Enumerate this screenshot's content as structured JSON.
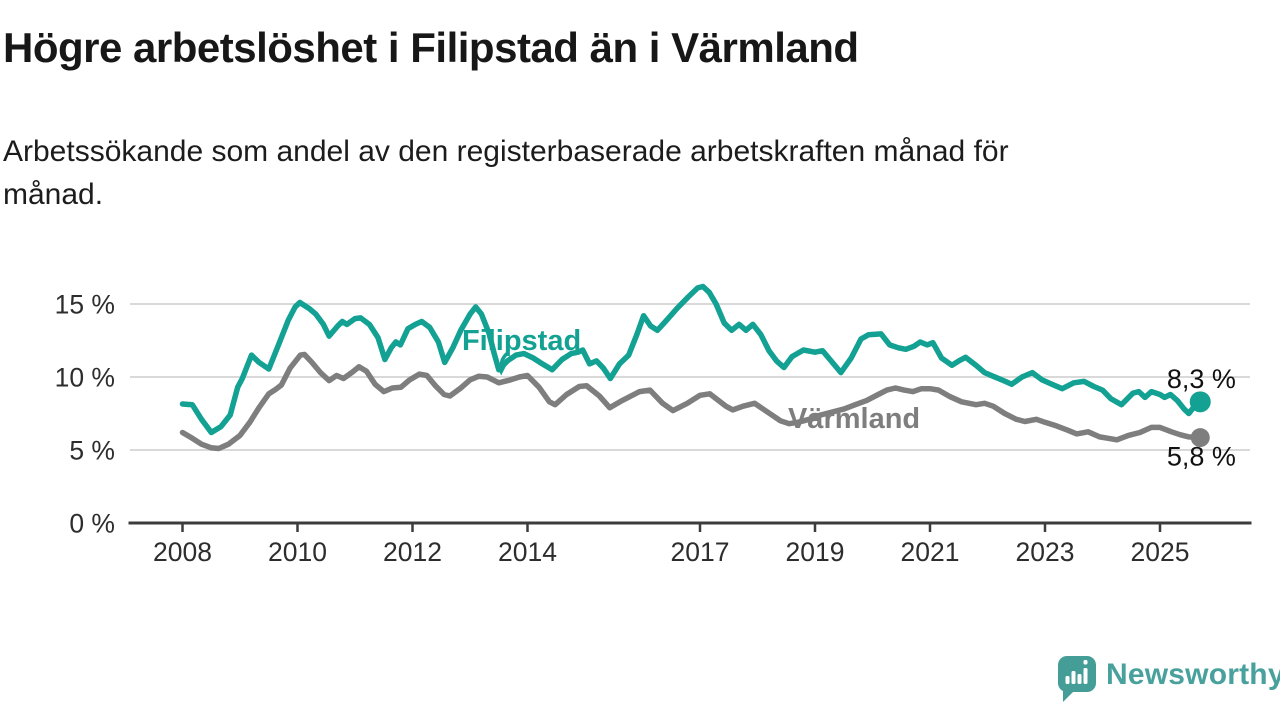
{
  "header": {
    "title": "Högre arbetslöshet i Filipstad än i Värmland",
    "subtitle_lines": [
      "Arbetssökande som andel av den registerbaserade arbetskraften månad för",
      "månad."
    ]
  },
  "branding": {
    "logo_text": "Newsworthy",
    "logo_color": "#459d98",
    "logo_text_color": "#48a19c"
  },
  "style": {
    "accent_teal": "#12a192",
    "series_gray": "#7e7e7e",
    "gridline_color": "#d9d9d9",
    "axis_color": "#3c3c3c",
    "tick_label_color": "#2d2d2d",
    "value_label_color": "#111111",
    "background": "#ffffff"
  },
  "chart_data": {
    "type": "line",
    "title": "Högre arbetslöshet i Filipstad än i Värmland",
    "subtitle": "Arbetssökande som andel av den registerbaserade arbetskraften månad för månad.",
    "unit": "%",
    "grid": "horizontal-only",
    "legend_position": "inline-labels",
    "x_axis": {
      "range": [
        2007.1,
        2026.6
      ],
      "ticks": [
        {
          "value": 2008,
          "label": "2008"
        },
        {
          "value": 2010,
          "label": "2010"
        },
        {
          "value": 2012,
          "label": "2012"
        },
        {
          "value": 2014,
          "label": "2014"
        },
        {
          "value": 2017,
          "label": "2017"
        },
        {
          "value": 2019,
          "label": "2019"
        },
        {
          "value": 2021,
          "label": "2021"
        },
        {
          "value": 2023,
          "label": "2023"
        },
        {
          "value": 2025,
          "label": "2025"
        }
      ]
    },
    "y_axis": {
      "range": [
        0,
        16.8
      ],
      "gridlines": [
        5,
        10,
        15
      ],
      "ticks": [
        {
          "value": 0,
          "label": "0 %"
        },
        {
          "value": 5,
          "label": "5 %"
        },
        {
          "value": 10,
          "label": "10 %"
        },
        {
          "value": 15,
          "label": "15 %"
        }
      ]
    },
    "series": [
      {
        "name": "Värmland",
        "color": "#7e7e7e",
        "line_width": 5.5,
        "dot_radius": 9.5,
        "label_pos": [
          2018.53,
          6.5
        ],
        "end_value": 5.8,
        "end_label": "5,8 %",
        "end_label_pos": [
          2025.12,
          3.95
        ],
        "points": [
          [
            2008.0,
            6.2
          ],
          [
            2008.17,
            5.8
          ],
          [
            2008.33,
            5.4
          ],
          [
            2008.5,
            5.15
          ],
          [
            2008.63,
            5.1
          ],
          [
            2008.8,
            5.4
          ],
          [
            2009.0,
            6.0
          ],
          [
            2009.17,
            6.9
          ],
          [
            2009.33,
            7.9
          ],
          [
            2009.5,
            8.85
          ],
          [
            2009.62,
            9.15
          ],
          [
            2009.72,
            9.45
          ],
          [
            2009.87,
            10.6
          ],
          [
            2010.05,
            11.5
          ],
          [
            2010.12,
            11.55
          ],
          [
            2010.25,
            11.0
          ],
          [
            2010.4,
            10.3
          ],
          [
            2010.55,
            9.75
          ],
          [
            2010.68,
            10.1
          ],
          [
            2010.8,
            9.9
          ],
          [
            2010.96,
            10.35
          ],
          [
            2011.07,
            10.7
          ],
          [
            2011.2,
            10.4
          ],
          [
            2011.35,
            9.5
          ],
          [
            2011.5,
            9.0
          ],
          [
            2011.65,
            9.25
          ],
          [
            2011.8,
            9.3
          ],
          [
            2011.95,
            9.8
          ],
          [
            2012.12,
            10.2
          ],
          [
            2012.25,
            10.1
          ],
          [
            2012.4,
            9.4
          ],
          [
            2012.55,
            8.8
          ],
          [
            2012.65,
            8.7
          ],
          [
            2012.84,
            9.25
          ],
          [
            2013.0,
            9.8
          ],
          [
            2013.15,
            10.05
          ],
          [
            2013.3,
            10.0
          ],
          [
            2013.5,
            9.6
          ],
          [
            2013.7,
            9.8
          ],
          [
            2013.86,
            10.0
          ],
          [
            2014.0,
            10.1
          ],
          [
            2014.2,
            9.3
          ],
          [
            2014.38,
            8.3
          ],
          [
            2014.48,
            8.1
          ],
          [
            2014.68,
            8.8
          ],
          [
            2014.9,
            9.35
          ],
          [
            2015.03,
            9.4
          ],
          [
            2015.25,
            8.7
          ],
          [
            2015.43,
            7.9
          ],
          [
            2015.65,
            8.4
          ],
          [
            2015.95,
            9.0
          ],
          [
            2016.13,
            9.1
          ],
          [
            2016.35,
            8.2
          ],
          [
            2016.53,
            7.7
          ],
          [
            2016.78,
            8.2
          ],
          [
            2017.0,
            8.75
          ],
          [
            2017.17,
            8.85
          ],
          [
            2017.45,
            8.0
          ],
          [
            2017.57,
            7.75
          ],
          [
            2017.75,
            8.0
          ],
          [
            2017.95,
            8.2
          ],
          [
            2018.1,
            7.8
          ],
          [
            2018.25,
            7.4
          ],
          [
            2018.4,
            7.0
          ],
          [
            2018.55,
            6.8
          ],
          [
            2018.7,
            6.9
          ],
          [
            2018.9,
            7.1
          ],
          [
            2019.1,
            7.4
          ],
          [
            2019.3,
            7.6
          ],
          [
            2019.5,
            7.8
          ],
          [
            2019.7,
            8.1
          ],
          [
            2019.9,
            8.4
          ],
          [
            2020.1,
            8.8
          ],
          [
            2020.25,
            9.1
          ],
          [
            2020.4,
            9.25
          ],
          [
            2020.55,
            9.1
          ],
          [
            2020.7,
            9.0
          ],
          [
            2020.85,
            9.2
          ],
          [
            2021.0,
            9.2
          ],
          [
            2021.15,
            9.1
          ],
          [
            2021.35,
            8.65
          ],
          [
            2021.55,
            8.3
          ],
          [
            2021.8,
            8.1
          ],
          [
            2021.95,
            8.2
          ],
          [
            2022.1,
            8.0
          ],
          [
            2022.3,
            7.5
          ],
          [
            2022.5,
            7.1
          ],
          [
            2022.65,
            6.95
          ],
          [
            2022.85,
            7.1
          ],
          [
            2023.0,
            6.9
          ],
          [
            2023.2,
            6.65
          ],
          [
            2023.4,
            6.35
          ],
          [
            2023.55,
            6.1
          ],
          [
            2023.75,
            6.25
          ],
          [
            2023.95,
            5.9
          ],
          [
            2024.1,
            5.8
          ],
          [
            2024.25,
            5.7
          ],
          [
            2024.45,
            6.0
          ],
          [
            2024.65,
            6.2
          ],
          [
            2024.85,
            6.55
          ],
          [
            2025.0,
            6.55
          ],
          [
            2025.2,
            6.25
          ],
          [
            2025.35,
            6.05
          ],
          [
            2025.5,
            5.9
          ],
          [
            2025.7,
            5.85
          ]
        ]
      },
      {
        "name": "Filipstad",
        "color": "#12a192",
        "line_width": 5.5,
        "dot_radius": 10.5,
        "label_pos": [
          2012.86,
          11.85
        ],
        "end_value": 8.3,
        "end_label": "8,3 %",
        "end_label_pos": [
          2025.12,
          9.25
        ],
        "points": [
          [
            2008.0,
            8.15
          ],
          [
            2008.17,
            8.1
          ],
          [
            2008.33,
            7.1
          ],
          [
            2008.5,
            6.2
          ],
          [
            2008.67,
            6.6
          ],
          [
            2008.83,
            7.4
          ],
          [
            2008.96,
            9.3
          ],
          [
            2009.04,
            9.9
          ],
          [
            2009.2,
            11.5
          ],
          [
            2009.33,
            11.0
          ],
          [
            2009.5,
            10.55
          ],
          [
            2009.67,
            12.2
          ],
          [
            2009.84,
            13.9
          ],
          [
            2009.96,
            14.8
          ],
          [
            2010.04,
            15.1
          ],
          [
            2010.2,
            14.7
          ],
          [
            2010.32,
            14.3
          ],
          [
            2010.45,
            13.6
          ],
          [
            2010.55,
            12.8
          ],
          [
            2010.7,
            13.5
          ],
          [
            2010.78,
            13.8
          ],
          [
            2010.86,
            13.6
          ],
          [
            2011.0,
            14.0
          ],
          [
            2011.1,
            14.05
          ],
          [
            2011.25,
            13.6
          ],
          [
            2011.4,
            12.7
          ],
          [
            2011.52,
            11.2
          ],
          [
            2011.63,
            12.0
          ],
          [
            2011.71,
            12.4
          ],
          [
            2011.79,
            12.2
          ],
          [
            2011.92,
            13.3
          ],
          [
            2012.05,
            13.6
          ],
          [
            2012.16,
            13.8
          ],
          [
            2012.3,
            13.4
          ],
          [
            2012.45,
            12.4
          ],
          [
            2012.56,
            11.0
          ],
          [
            2012.7,
            12.0
          ],
          [
            2012.84,
            13.2
          ],
          [
            2013.0,
            14.3
          ],
          [
            2013.1,
            14.8
          ],
          [
            2013.2,
            14.3
          ],
          [
            2013.33,
            13.0
          ],
          [
            2013.42,
            11.6
          ],
          [
            2013.5,
            10.5
          ],
          [
            2013.65,
            11.1
          ],
          [
            2013.8,
            11.5
          ],
          [
            2013.94,
            11.6
          ],
          [
            2014.1,
            11.3
          ],
          [
            2014.26,
            10.9
          ],
          [
            2014.43,
            10.5
          ],
          [
            2014.6,
            11.2
          ],
          [
            2014.76,
            11.6
          ],
          [
            2014.88,
            11.7
          ],
          [
            2014.96,
            11.85
          ],
          [
            2015.08,
            10.9
          ],
          [
            2015.2,
            11.1
          ],
          [
            2015.32,
            10.6
          ],
          [
            2015.44,
            9.9
          ],
          [
            2015.6,
            10.9
          ],
          [
            2015.76,
            11.5
          ],
          [
            2015.9,
            12.9
          ],
          [
            2016.02,
            14.2
          ],
          [
            2016.14,
            13.5
          ],
          [
            2016.26,
            13.2
          ],
          [
            2016.42,
            13.9
          ],
          [
            2016.6,
            14.7
          ],
          [
            2016.8,
            15.5
          ],
          [
            2016.96,
            16.1
          ],
          [
            2017.05,
            16.2
          ],
          [
            2017.16,
            15.8
          ],
          [
            2017.28,
            15.0
          ],
          [
            2017.42,
            13.7
          ],
          [
            2017.55,
            13.2
          ],
          [
            2017.68,
            13.6
          ],
          [
            2017.8,
            13.2
          ],
          [
            2017.92,
            13.6
          ],
          [
            2018.06,
            12.9
          ],
          [
            2018.2,
            11.8
          ],
          [
            2018.33,
            11.1
          ],
          [
            2018.46,
            10.65
          ],
          [
            2018.6,
            11.4
          ],
          [
            2018.8,
            11.85
          ],
          [
            2019.0,
            11.7
          ],
          [
            2019.13,
            11.8
          ],
          [
            2019.28,
            11.1
          ],
          [
            2019.45,
            10.3
          ],
          [
            2019.63,
            11.3
          ],
          [
            2019.8,
            12.6
          ],
          [
            2019.93,
            12.9
          ],
          [
            2020.15,
            12.95
          ],
          [
            2020.3,
            12.2
          ],
          [
            2020.45,
            12.0
          ],
          [
            2020.58,
            11.9
          ],
          [
            2020.72,
            12.1
          ],
          [
            2020.83,
            12.4
          ],
          [
            2020.95,
            12.2
          ],
          [
            2021.05,
            12.35
          ],
          [
            2021.2,
            11.3
          ],
          [
            2021.38,
            10.8
          ],
          [
            2021.5,
            11.1
          ],
          [
            2021.62,
            11.35
          ],
          [
            2021.8,
            10.8
          ],
          [
            2021.95,
            10.3
          ],
          [
            2022.1,
            10.05
          ],
          [
            2022.25,
            9.8
          ],
          [
            2022.42,
            9.5
          ],
          [
            2022.6,
            10.0
          ],
          [
            2022.78,
            10.3
          ],
          [
            2022.95,
            9.8
          ],
          [
            2023.12,
            9.5
          ],
          [
            2023.3,
            9.2
          ],
          [
            2023.5,
            9.6
          ],
          [
            2023.68,
            9.7
          ],
          [
            2023.85,
            9.35
          ],
          [
            2024.0,
            9.1
          ],
          [
            2024.15,
            8.5
          ],
          [
            2024.33,
            8.1
          ],
          [
            2024.53,
            8.9
          ],
          [
            2024.63,
            9.0
          ],
          [
            2024.74,
            8.6
          ],
          [
            2024.85,
            9.0
          ],
          [
            2025.0,
            8.8
          ],
          [
            2025.08,
            8.6
          ],
          [
            2025.18,
            8.8
          ],
          [
            2025.3,
            8.4
          ],
          [
            2025.42,
            7.8
          ],
          [
            2025.5,
            7.5
          ],
          [
            2025.6,
            8.0
          ],
          [
            2025.7,
            8.3
          ]
        ]
      }
    ],
    "annotations": [
      {
        "type": "arrow",
        "series": "Filipstad",
        "from": [
          2013.64,
          11.6
        ],
        "to": [
          2013.55,
          10.75
        ],
        "color": "#12a192"
      }
    ]
  }
}
